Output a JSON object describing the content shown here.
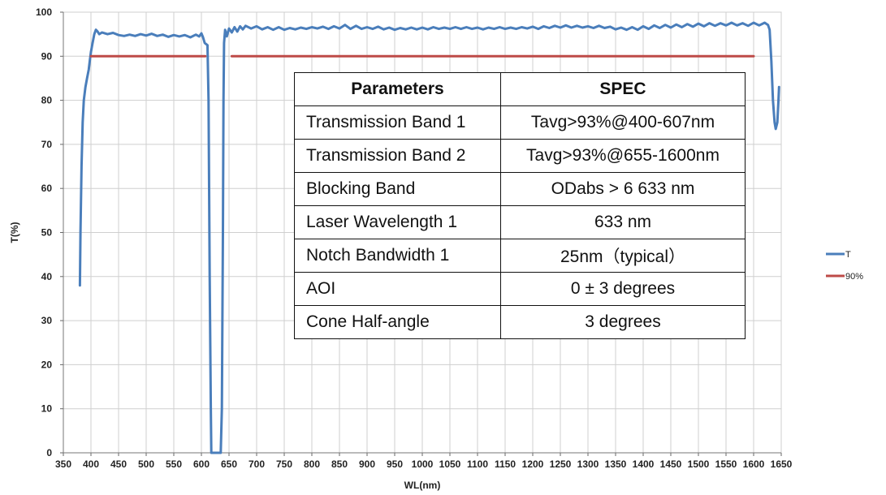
{
  "chart_data": {
    "type": "line",
    "xlabel": "WL(nm)",
    "ylabel": "T(%)",
    "xlim": [
      350,
      1650
    ],
    "ylim": [
      0,
      100
    ],
    "x_ticks": [
      350,
      400,
      450,
      500,
      550,
      600,
      650,
      700,
      750,
      800,
      850,
      900,
      950,
      1000,
      1050,
      1100,
      1150,
      1200,
      1250,
      1300,
      1350,
      1400,
      1450,
      1500,
      1550,
      1600,
      1650
    ],
    "y_ticks": [
      0,
      10,
      20,
      30,
      40,
      50,
      60,
      70,
      80,
      90,
      100
    ],
    "grid": true,
    "legend_position": "right",
    "series": [
      {
        "name": "T",
        "color": "#4a7ebb",
        "points": [
          [
            380,
            38
          ],
          [
            381,
            50
          ],
          [
            383,
            65
          ],
          [
            385,
            75
          ],
          [
            387,
            80
          ],
          [
            390,
            83
          ],
          [
            393,
            85
          ],
          [
            396,
            87
          ],
          [
            398,
            89
          ],
          [
            400,
            91
          ],
          [
            403,
            93
          ],
          [
            406,
            95
          ],
          [
            409,
            96
          ],
          [
            412,
            95.6
          ],
          [
            415,
            95
          ],
          [
            420,
            95.4
          ],
          [
            430,
            95
          ],
          [
            440,
            95.3
          ],
          [
            450,
            94.8
          ],
          [
            460,
            94.6
          ],
          [
            470,
            94.9
          ],
          [
            480,
            94.6
          ],
          [
            490,
            95
          ],
          [
            500,
            94.7
          ],
          [
            510,
            95.1
          ],
          [
            520,
            94.6
          ],
          [
            530,
            94.9
          ],
          [
            540,
            94.4
          ],
          [
            550,
            94.8
          ],
          [
            560,
            94.5
          ],
          [
            570,
            94.8
          ],
          [
            580,
            94.3
          ],
          [
            590,
            94.9
          ],
          [
            596,
            94.5
          ],
          [
            600,
            95.2
          ],
          [
            603,
            94.3
          ],
          [
            606,
            93
          ],
          [
            609,
            92.7
          ],
          [
            611,
            92.5
          ],
          [
            613,
            80
          ],
          [
            615,
            40
          ],
          [
            617,
            10
          ],
          [
            618,
            0
          ],
          [
            635,
            0
          ],
          [
            637,
            10
          ],
          [
            639,
            50
          ],
          [
            640,
            80
          ],
          [
            641,
            93
          ],
          [
            643,
            96
          ],
          [
            646,
            94.5
          ],
          [
            650,
            96.3
          ],
          [
            655,
            95.4
          ],
          [
            660,
            96.6
          ],
          [
            665,
            95.6
          ],
          [
            670,
            96.8
          ],
          [
            675,
            96.1
          ],
          [
            680,
            96.9
          ],
          [
            690,
            96.3
          ],
          [
            700,
            96.8
          ],
          [
            710,
            96.1
          ],
          [
            720,
            96.6
          ],
          [
            730,
            96
          ],
          [
            740,
            96.6
          ],
          [
            750,
            96
          ],
          [
            760,
            96.4
          ],
          [
            770,
            96.1
          ],
          [
            780,
            96.5
          ],
          [
            790,
            96.2
          ],
          [
            800,
            96.6
          ],
          [
            810,
            96.3
          ],
          [
            820,
            96.7
          ],
          [
            830,
            96.2
          ],
          [
            840,
            96.8
          ],
          [
            850,
            96.3
          ],
          [
            860,
            97.1
          ],
          [
            870,
            96.2
          ],
          [
            880,
            96.9
          ],
          [
            890,
            96.2
          ],
          [
            900,
            96.6
          ],
          [
            910,
            96.2
          ],
          [
            920,
            96.7
          ],
          [
            930,
            96.1
          ],
          [
            940,
            96.5
          ],
          [
            950,
            96
          ],
          [
            960,
            96.4
          ],
          [
            970,
            96.1
          ],
          [
            980,
            96.5
          ],
          [
            990,
            96.1
          ],
          [
            1000,
            96.5
          ],
          [
            1010,
            96.1
          ],
          [
            1020,
            96.6
          ],
          [
            1030,
            96.2
          ],
          [
            1040,
            96.5
          ],
          [
            1050,
            96.2
          ],
          [
            1060,
            96.6
          ],
          [
            1070,
            96.2
          ],
          [
            1080,
            96.6
          ],
          [
            1090,
            96.2
          ],
          [
            1100,
            96.5
          ],
          [
            1110,
            96.1
          ],
          [
            1120,
            96.5
          ],
          [
            1130,
            96.2
          ],
          [
            1140,
            96.6
          ],
          [
            1150,
            96.2
          ],
          [
            1160,
            96.5
          ],
          [
            1170,
            96.2
          ],
          [
            1180,
            96.6
          ],
          [
            1190,
            96.3
          ],
          [
            1200,
            96.7
          ],
          [
            1210,
            96.2
          ],
          [
            1220,
            96.8
          ],
          [
            1230,
            96.4
          ],
          [
            1240,
            96.9
          ],
          [
            1250,
            96.5
          ],
          [
            1260,
            97
          ],
          [
            1270,
            96.5
          ],
          [
            1280,
            96.9
          ],
          [
            1290,
            96.5
          ],
          [
            1300,
            96.8
          ],
          [
            1310,
            96.4
          ],
          [
            1320,
            96.9
          ],
          [
            1330,
            96.4
          ],
          [
            1340,
            96.7
          ],
          [
            1350,
            96.1
          ],
          [
            1360,
            96.5
          ],
          [
            1370,
            96
          ],
          [
            1380,
            96.6
          ],
          [
            1390,
            96
          ],
          [
            1400,
            96.8
          ],
          [
            1410,
            96.2
          ],
          [
            1420,
            97
          ],
          [
            1430,
            96.4
          ],
          [
            1440,
            97.1
          ],
          [
            1450,
            96.5
          ],
          [
            1460,
            97.2
          ],
          [
            1470,
            96.6
          ],
          [
            1480,
            97.3
          ],
          [
            1490,
            96.7
          ],
          [
            1500,
            97.4
          ],
          [
            1510,
            96.8
          ],
          [
            1520,
            97.5
          ],
          [
            1530,
            96.9
          ],
          [
            1540,
            97.5
          ],
          [
            1550,
            97
          ],
          [
            1560,
            97.6
          ],
          [
            1570,
            97
          ],
          [
            1580,
            97.5
          ],
          [
            1590,
            96.9
          ],
          [
            1600,
            97.6
          ],
          [
            1610,
            97
          ],
          [
            1620,
            97.6
          ],
          [
            1626,
            97.1
          ],
          [
            1629,
            96
          ],
          [
            1632,
            89
          ],
          [
            1635,
            80
          ],
          [
            1638,
            75
          ],
          [
            1640,
            73.5
          ],
          [
            1643,
            75
          ],
          [
            1645,
            80
          ],
          [
            1646,
            83
          ]
        ]
      },
      {
        "name": "90%",
        "color": "#be4b48",
        "segments": [
          [
            [
              400,
              90
            ],
            [
              607,
              90
            ]
          ],
          [
            [
              655,
              90
            ],
            [
              1600,
              90
            ]
          ]
        ]
      }
    ],
    "table": {
      "headers": [
        "Parameters",
        "SPEC"
      ],
      "rows": [
        [
          "Transmission Band 1",
          "Tavg>93%@400-607nm"
        ],
        [
          "Transmission Band 2",
          "Tavg>93%@655-1600nm"
        ],
        [
          "Blocking Band",
          "ODabs > 6 633 nm"
        ],
        [
          "Laser Wavelength 1",
          "633 nm"
        ],
        [
          "Notch Bandwidth 1",
          "25nm（typical）"
        ],
        [
          "AOI",
          "0 ± 3 degrees"
        ],
        [
          "Cone Half-angle",
          "3 degrees"
        ]
      ]
    }
  }
}
